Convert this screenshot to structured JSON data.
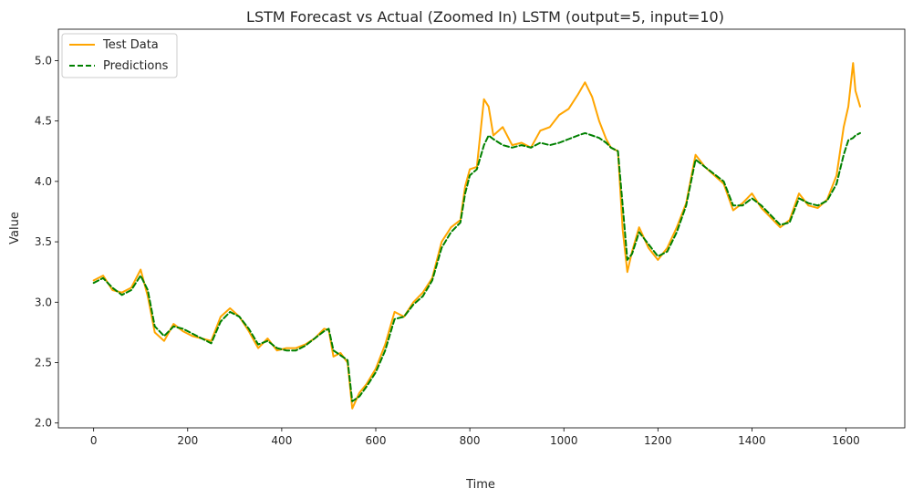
{
  "chart_data": {
    "type": "line",
    "title": "LSTM Forecast vs Actual (Zoomed In) LSTM (output=5, input=10)",
    "xlabel": "Time",
    "ylabel": "Value",
    "xlim": [
      -75,
      1725
    ],
    "ylim": [
      1.96,
      5.26
    ],
    "xticks": [
      0,
      200,
      400,
      600,
      800,
      1000,
      1200,
      1400,
      1600
    ],
    "yticks": [
      2.0,
      2.5,
      3.0,
      3.5,
      4.0,
      4.5,
      5.0
    ],
    "xtick_labels": [
      "0",
      "200",
      "400",
      "600",
      "800",
      "1000",
      "1200",
      "1400",
      "1600"
    ],
    "ytick_labels": [
      "2.0",
      "2.5",
      "3.0",
      "3.5",
      "4.0",
      "4.5",
      "5.0"
    ],
    "grid": false,
    "legend_position": "upper-left",
    "series": [
      {
        "name": "Test Data",
        "color": "#ffa500",
        "style": "solid",
        "x": [
          0,
          20,
          40,
          60,
          80,
          100,
          115,
          130,
          150,
          170,
          190,
          210,
          230,
          250,
          270,
          290,
          310,
          330,
          350,
          370,
          390,
          410,
          430,
          450,
          470,
          490,
          500,
          510,
          525,
          540,
          550,
          565,
          580,
          600,
          620,
          640,
          660,
          680,
          700,
          720,
          740,
          760,
          780,
          790,
          800,
          815,
          830,
          840,
          850,
          870,
          890,
          910,
          930,
          950,
          970,
          990,
          1010,
          1030,
          1045,
          1060,
          1075,
          1090,
          1100,
          1115,
          1125,
          1135,
          1145,
          1160,
          1180,
          1200,
          1220,
          1240,
          1260,
          1280,
          1300,
          1320,
          1340,
          1360,
          1380,
          1400,
          1420,
          1440,
          1460,
          1480,
          1500,
          1520,
          1540,
          1560,
          1580,
          1595,
          1605,
          1615,
          1620,
          1630
        ],
        "y": [
          3.18,
          3.22,
          3.1,
          3.08,
          3.12,
          3.27,
          3.05,
          2.75,
          2.68,
          2.82,
          2.76,
          2.72,
          2.7,
          2.68,
          2.88,
          2.95,
          2.88,
          2.76,
          2.62,
          2.7,
          2.6,
          2.62,
          2.62,
          2.65,
          2.7,
          2.78,
          2.77,
          2.55,
          2.58,
          2.5,
          2.12,
          2.25,
          2.32,
          2.45,
          2.65,
          2.92,
          2.88,
          3.0,
          3.08,
          3.2,
          3.5,
          3.62,
          3.68,
          3.96,
          4.1,
          4.12,
          4.68,
          4.62,
          4.38,
          4.45,
          4.3,
          4.32,
          4.28,
          4.42,
          4.45,
          4.55,
          4.6,
          4.72,
          4.82,
          4.7,
          4.5,
          4.35,
          4.28,
          4.25,
          3.6,
          3.25,
          3.42,
          3.62,
          3.45,
          3.35,
          3.45,
          3.62,
          3.82,
          4.22,
          4.12,
          4.05,
          3.98,
          3.76,
          3.82,
          3.9,
          3.78,
          3.7,
          3.62,
          3.68,
          3.9,
          3.8,
          3.78,
          3.85,
          4.05,
          4.45,
          4.62,
          4.98,
          4.75,
          4.62
        ]
      },
      {
        "name": "Predictions",
        "color": "#008000",
        "style": "dashed",
        "x": [
          0,
          20,
          40,
          60,
          80,
          100,
          115,
          130,
          150,
          170,
          190,
          210,
          230,
          250,
          270,
          290,
          310,
          330,
          350,
          370,
          390,
          410,
          430,
          450,
          470,
          490,
          500,
          510,
          525,
          540,
          550,
          565,
          580,
          600,
          620,
          640,
          660,
          680,
          700,
          720,
          740,
          760,
          780,
          790,
          800,
          815,
          830,
          840,
          850,
          870,
          890,
          910,
          930,
          950,
          970,
          990,
          1010,
          1030,
          1045,
          1060,
          1075,
          1090,
          1100,
          1115,
          1125,
          1135,
          1145,
          1160,
          1180,
          1200,
          1220,
          1240,
          1260,
          1280,
          1300,
          1320,
          1340,
          1360,
          1380,
          1400,
          1420,
          1440,
          1460,
          1480,
          1500,
          1520,
          1540,
          1560,
          1580,
          1595,
          1605,
          1615,
          1620,
          1630
        ],
        "y": [
          3.16,
          3.2,
          3.12,
          3.06,
          3.1,
          3.22,
          3.1,
          2.8,
          2.72,
          2.8,
          2.78,
          2.74,
          2.7,
          2.66,
          2.84,
          2.92,
          2.88,
          2.78,
          2.65,
          2.68,
          2.62,
          2.6,
          2.6,
          2.64,
          2.7,
          2.76,
          2.78,
          2.6,
          2.56,
          2.52,
          2.18,
          2.22,
          2.3,
          2.42,
          2.6,
          2.86,
          2.88,
          2.98,
          3.05,
          3.18,
          3.45,
          3.58,
          3.66,
          3.9,
          4.05,
          4.1,
          4.3,
          4.38,
          4.35,
          4.3,
          4.28,
          4.3,
          4.28,
          4.32,
          4.3,
          4.32,
          4.35,
          4.38,
          4.4,
          4.38,
          4.36,
          4.32,
          4.28,
          4.25,
          3.8,
          3.35,
          3.4,
          3.58,
          3.48,
          3.38,
          3.42,
          3.58,
          3.8,
          4.18,
          4.12,
          4.06,
          4.0,
          3.8,
          3.8,
          3.86,
          3.8,
          3.72,
          3.64,
          3.66,
          3.86,
          3.82,
          3.8,
          3.84,
          3.98,
          4.22,
          4.34,
          4.36,
          4.38,
          4.4
        ]
      }
    ]
  }
}
